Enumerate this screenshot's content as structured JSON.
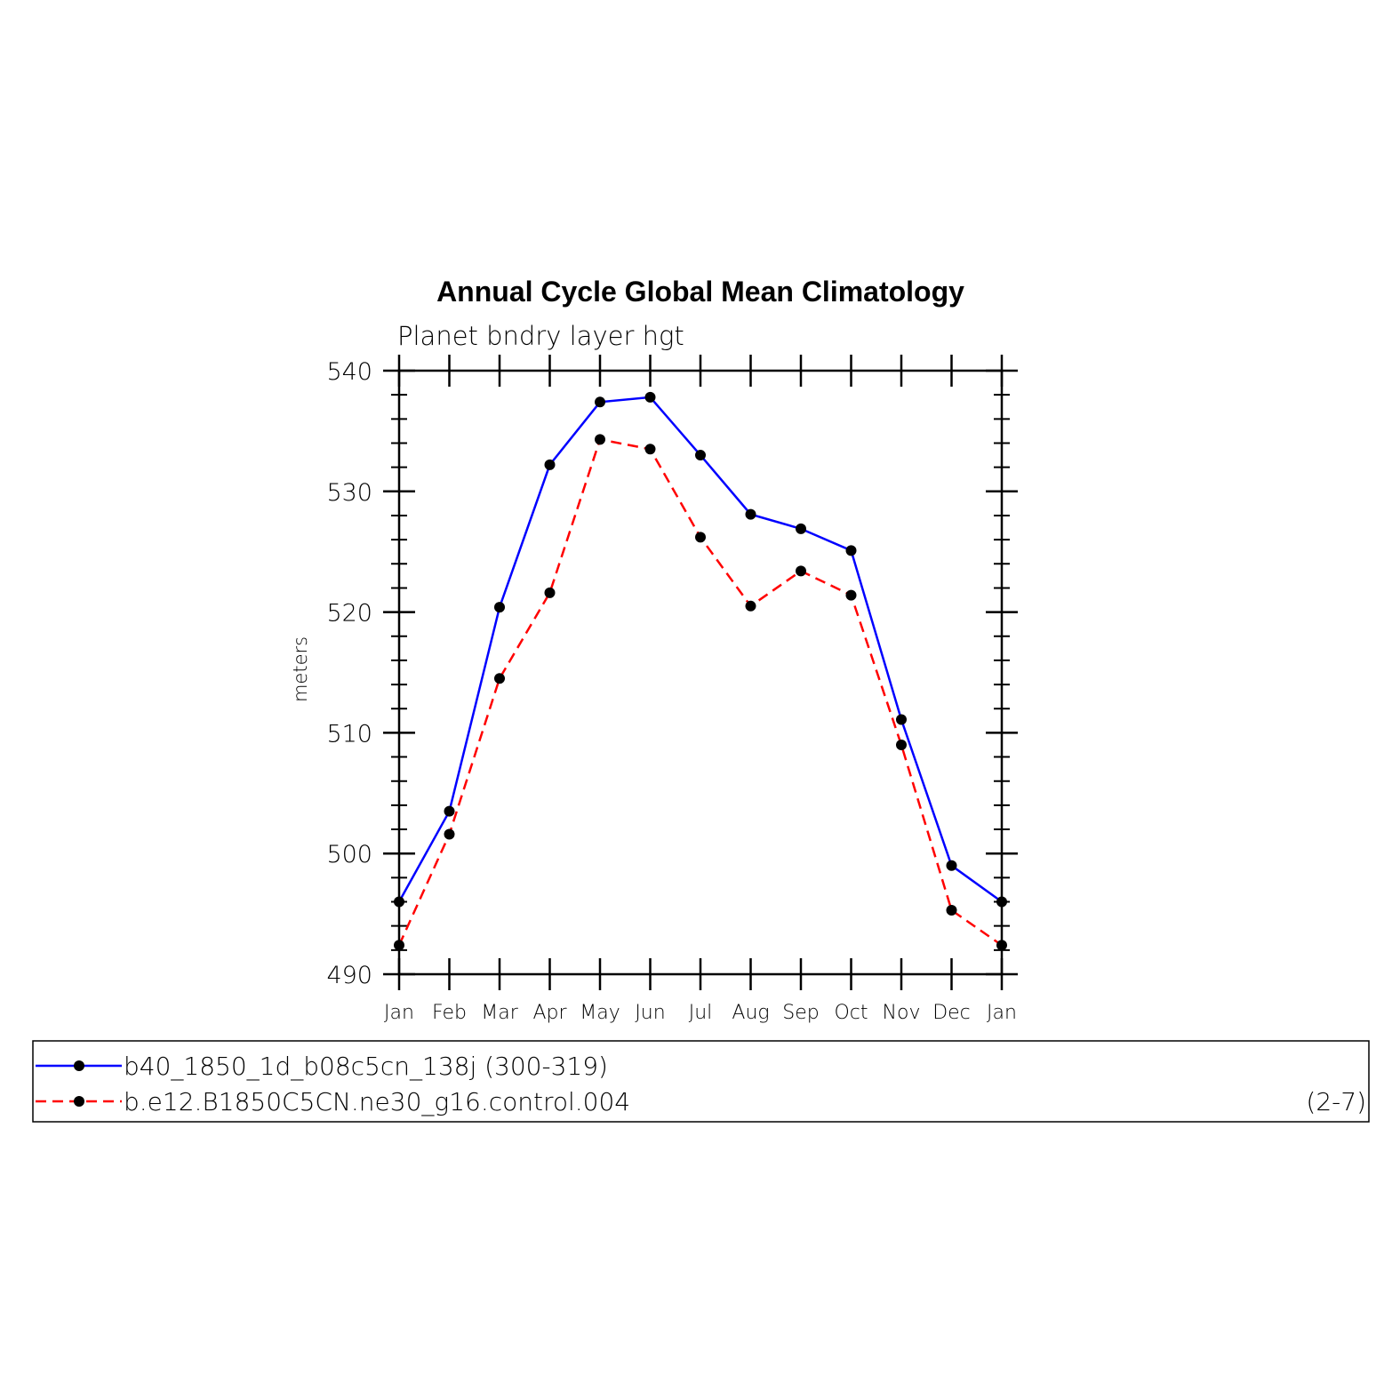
{
  "chart_data": {
    "type": "line",
    "title": "Annual Cycle Global Mean Climatology",
    "subtitle": "Planet bndry layer hgt",
    "ylabel": "meters",
    "xlabel": "",
    "categories": [
      "Jan",
      "Feb",
      "Mar",
      "Apr",
      "May",
      "Jun",
      "Jul",
      "Aug",
      "Sep",
      "Oct",
      "Nov",
      "Dec",
      "Jan"
    ],
    "ylim": [
      490,
      540
    ],
    "yticks": [
      490,
      500,
      510,
      520,
      530,
      540
    ],
    "ytick_labels": [
      "490",
      "500",
      "510",
      "520",
      "530",
      "540"
    ],
    "series": [
      {
        "name": "b40_1850_1d_b08c5cn_138j (300-319)",
        "color": "#0000ff",
        "dash": "solid",
        "marker": "filled-circle",
        "values": [
          496.0,
          503.5,
          520.4,
          532.2,
          537.4,
          537.8,
          533.0,
          528.1,
          526.9,
          525.1,
          511.1,
          499.0,
          496.0
        ]
      },
      {
        "name": "b.e12.B1850C5CN.ne30_g16.control.004",
        "color": "#ff0000",
        "dash": "dashed",
        "marker": "filled-circle",
        "values": [
          492.4,
          501.6,
          514.5,
          521.6,
          534.3,
          533.5,
          526.2,
          520.5,
          523.4,
          521.4,
          509.0,
          495.3,
          492.4
        ]
      }
    ],
    "legend_position": "bottom",
    "legend_note": "(2-7)",
    "grid": false
  }
}
